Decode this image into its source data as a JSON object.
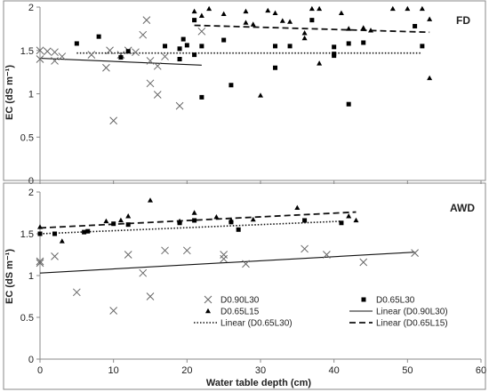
{
  "chart_data": [
    {
      "type": "scatter",
      "title": "FD",
      "ylabel": "EC (dS m⁻¹)",
      "xlim": [
        0,
        60
      ],
      "ylim": [
        0,
        2
      ],
      "yticks": [
        0,
        0.5,
        1,
        1.5,
        2
      ],
      "ytick_labels": [
        "0",
        "0.5",
        "1",
        "1.5",
        "2"
      ],
      "series": [
        {
          "name": "D0.90L30",
          "marker": "x",
          "points": [
            [
              0,
              1.4
            ],
            [
              0,
              1.5
            ],
            [
              1,
              1.49
            ],
            [
              2,
              1.38
            ],
            [
              2,
              1.48
            ],
            [
              3,
              1.43
            ],
            [
              7,
              1.45
            ],
            [
              9,
              1.3
            ],
            [
              9.5,
              1.5
            ],
            [
              10,
              0.69
            ],
            [
              11,
              1.45
            ],
            [
              12,
              1.5
            ],
            [
              13,
              1.48
            ],
            [
              14,
              1.68
            ],
            [
              14.5,
              1.85
            ],
            [
              15,
              1.38
            ],
            [
              15,
              1.12
            ],
            [
              16,
              1.32
            ],
            [
              16,
              0.99
            ],
            [
              17,
              1.43
            ],
            [
              19,
              0.86
            ],
            [
              22,
              1.72
            ]
          ]
        },
        {
          "name": "D0.65L30",
          "marker": "square",
          "points": [
            [
              5,
              1.58
            ],
            [
              8,
              1.66
            ],
            [
              11,
              1.42
            ],
            [
              12,
              1.49
            ],
            [
              17,
              1.55
            ],
            [
              19,
              1.52
            ],
            [
              19,
              1.4
            ],
            [
              19.5,
              1.63
            ],
            [
              20,
              1.56
            ],
            [
              21,
              1.45
            ],
            [
              21,
              1.85
            ],
            [
              22,
              1.55
            ],
            [
              22,
              0.96
            ],
            [
              25,
              1.62
            ],
            [
              26,
              1.1
            ],
            [
              32,
              1.3
            ],
            [
              32,
              1.55
            ],
            [
              34,
              1.55
            ],
            [
              37,
              1.85
            ],
            [
              40,
              1.54
            ],
            [
              40,
              1.44
            ],
            [
              40,
              1.46
            ],
            [
              42,
              1.58
            ],
            [
              42,
              0.88
            ],
            [
              44,
              1.59
            ],
            [
              51,
              1.78
            ],
            [
              52,
              1.55
            ]
          ]
        },
        {
          "name": "D0.65L15",
          "marker": "triangle",
          "points": [
            [
              21,
              1.95
            ],
            [
              22,
              1.9
            ],
            [
              23,
              1.98
            ],
            [
              25,
              1.92
            ],
            [
              28,
              1.95
            ],
            [
              28,
              1.82
            ],
            [
              29,
              1.8
            ],
            [
              30,
              0.98
            ],
            [
              31,
              1.96
            ],
            [
              32,
              1.93
            ],
            [
              33,
              1.84
            ],
            [
              34,
              1.83
            ],
            [
              36,
              1.64
            ],
            [
              36,
              1.7
            ],
            [
              37,
              1.98
            ],
            [
              38,
              1.98
            ],
            [
              38,
              1.35
            ],
            [
              41,
              1.93
            ],
            [
              42,
              1.75
            ],
            [
              44,
              1.76
            ],
            [
              45,
              1.73
            ],
            [
              48,
              1.98
            ],
            [
              50,
              1.98
            ],
            [
              52,
              1.98
            ],
            [
              53,
              1.86
            ],
            [
              53,
              1.18
            ]
          ]
        }
      ],
      "trendlines": [
        {
          "name": "Linear (D0.90L30)",
          "style": "solid",
          "x": [
            0,
            22
          ],
          "y": [
            1.41,
            1.33
          ]
        },
        {
          "name": "Linear (D0.65L30)",
          "style": "dotted",
          "x": [
            5,
            52
          ],
          "y": [
            1.47,
            1.47
          ]
        },
        {
          "name": "Linear (D0.65L15)",
          "style": "dashed",
          "x": [
            21,
            53
          ],
          "y": [
            1.79,
            1.71
          ]
        }
      ]
    },
    {
      "type": "scatter",
      "title": "AWD",
      "ylabel": "EC (dS m⁻¹)",
      "xlabel": "Water table depth (cm)",
      "xlim": [
        0,
        60
      ],
      "xticks": [
        0,
        10,
        20,
        30,
        40,
        50,
        60
      ],
      "xtick_labels": [
        "0",
        "10",
        "20",
        "30",
        "40",
        "50",
        "60"
      ],
      "ylim": [
        0,
        2
      ],
      "yticks": [
        0,
        0.5,
        1,
        1.5,
        2
      ],
      "ytick_labels": [
        "0",
        "0.5",
        "1",
        "1.5",
        "2"
      ],
      "series": [
        {
          "name": "D0.90L30",
          "marker": "x",
          "points": [
            [
              0,
              1.15
            ],
            [
              0,
              1.17
            ],
            [
              2,
              1.23
            ],
            [
              5,
              0.8
            ],
            [
              10,
              0.58
            ],
            [
              12,
              1.25
            ],
            [
              14,
              1.03
            ],
            [
              15,
              0.75
            ],
            [
              17,
              1.3
            ],
            [
              20,
              1.3
            ],
            [
              25,
              1.25
            ],
            [
              25,
              1.2
            ],
            [
              28,
              1.14
            ],
            [
              36,
              1.32
            ],
            [
              39,
              1.25
            ],
            [
              44,
              1.16
            ],
            [
              51,
              1.27
            ]
          ]
        },
        {
          "name": "D0.65L30",
          "marker": "square",
          "points": [
            [
              0,
              1.5
            ],
            [
              2,
              1.5
            ],
            [
              6,
              1.52
            ],
            [
              6.5,
              1.53
            ],
            [
              10,
              1.62
            ],
            [
              12,
              1.61
            ],
            [
              19,
              1.63
            ],
            [
              21,
              1.66
            ],
            [
              26,
              1.64
            ],
            [
              27,
              1.55
            ],
            [
              36,
              1.66
            ],
            [
              41,
              1.63
            ]
          ]
        },
        {
          "name": "D0.65L15",
          "marker": "triangle",
          "points": [
            [
              0,
              1.58
            ],
            [
              3,
              1.41
            ],
            [
              9,
              1.65
            ],
            [
              11,
              1.66
            ],
            [
              12,
              1.71
            ],
            [
              15,
              1.9
            ],
            [
              19,
              1.65
            ],
            [
              21,
              1.75
            ],
            [
              24,
              1.7
            ],
            [
              26,
              1.66
            ],
            [
              29,
              1.67
            ],
            [
              35,
              1.81
            ],
            [
              42,
              1.71
            ],
            [
              43,
              1.66
            ]
          ]
        }
      ],
      "trendlines": [
        {
          "name": "Linear (D0.90L30)",
          "style": "solid",
          "x": [
            0,
            51
          ],
          "y": [
            1.03,
            1.28
          ]
        },
        {
          "name": "Linear (D0.65L30)",
          "style": "dotted",
          "x": [
            0,
            41
          ],
          "y": [
            1.5,
            1.65
          ]
        },
        {
          "name": "Linear (D0.65L15)",
          "style": "dashed",
          "x": [
            0,
            43
          ],
          "y": [
            1.57,
            1.76
          ]
        }
      ]
    }
  ],
  "legend": [
    {
      "label": "D0.90L30",
      "marker": "x"
    },
    {
      "label": "D0.65L30",
      "marker": "square"
    },
    {
      "label": "D0.65L15",
      "marker": "triangle"
    },
    {
      "label": "Linear (D0.90L30)",
      "marker": "line-solid"
    },
    {
      "label": "Linear (D0.65L30)",
      "marker": "line-dotted"
    },
    {
      "label": "Linear (D0.65L15)",
      "marker": "line-dashed"
    }
  ]
}
